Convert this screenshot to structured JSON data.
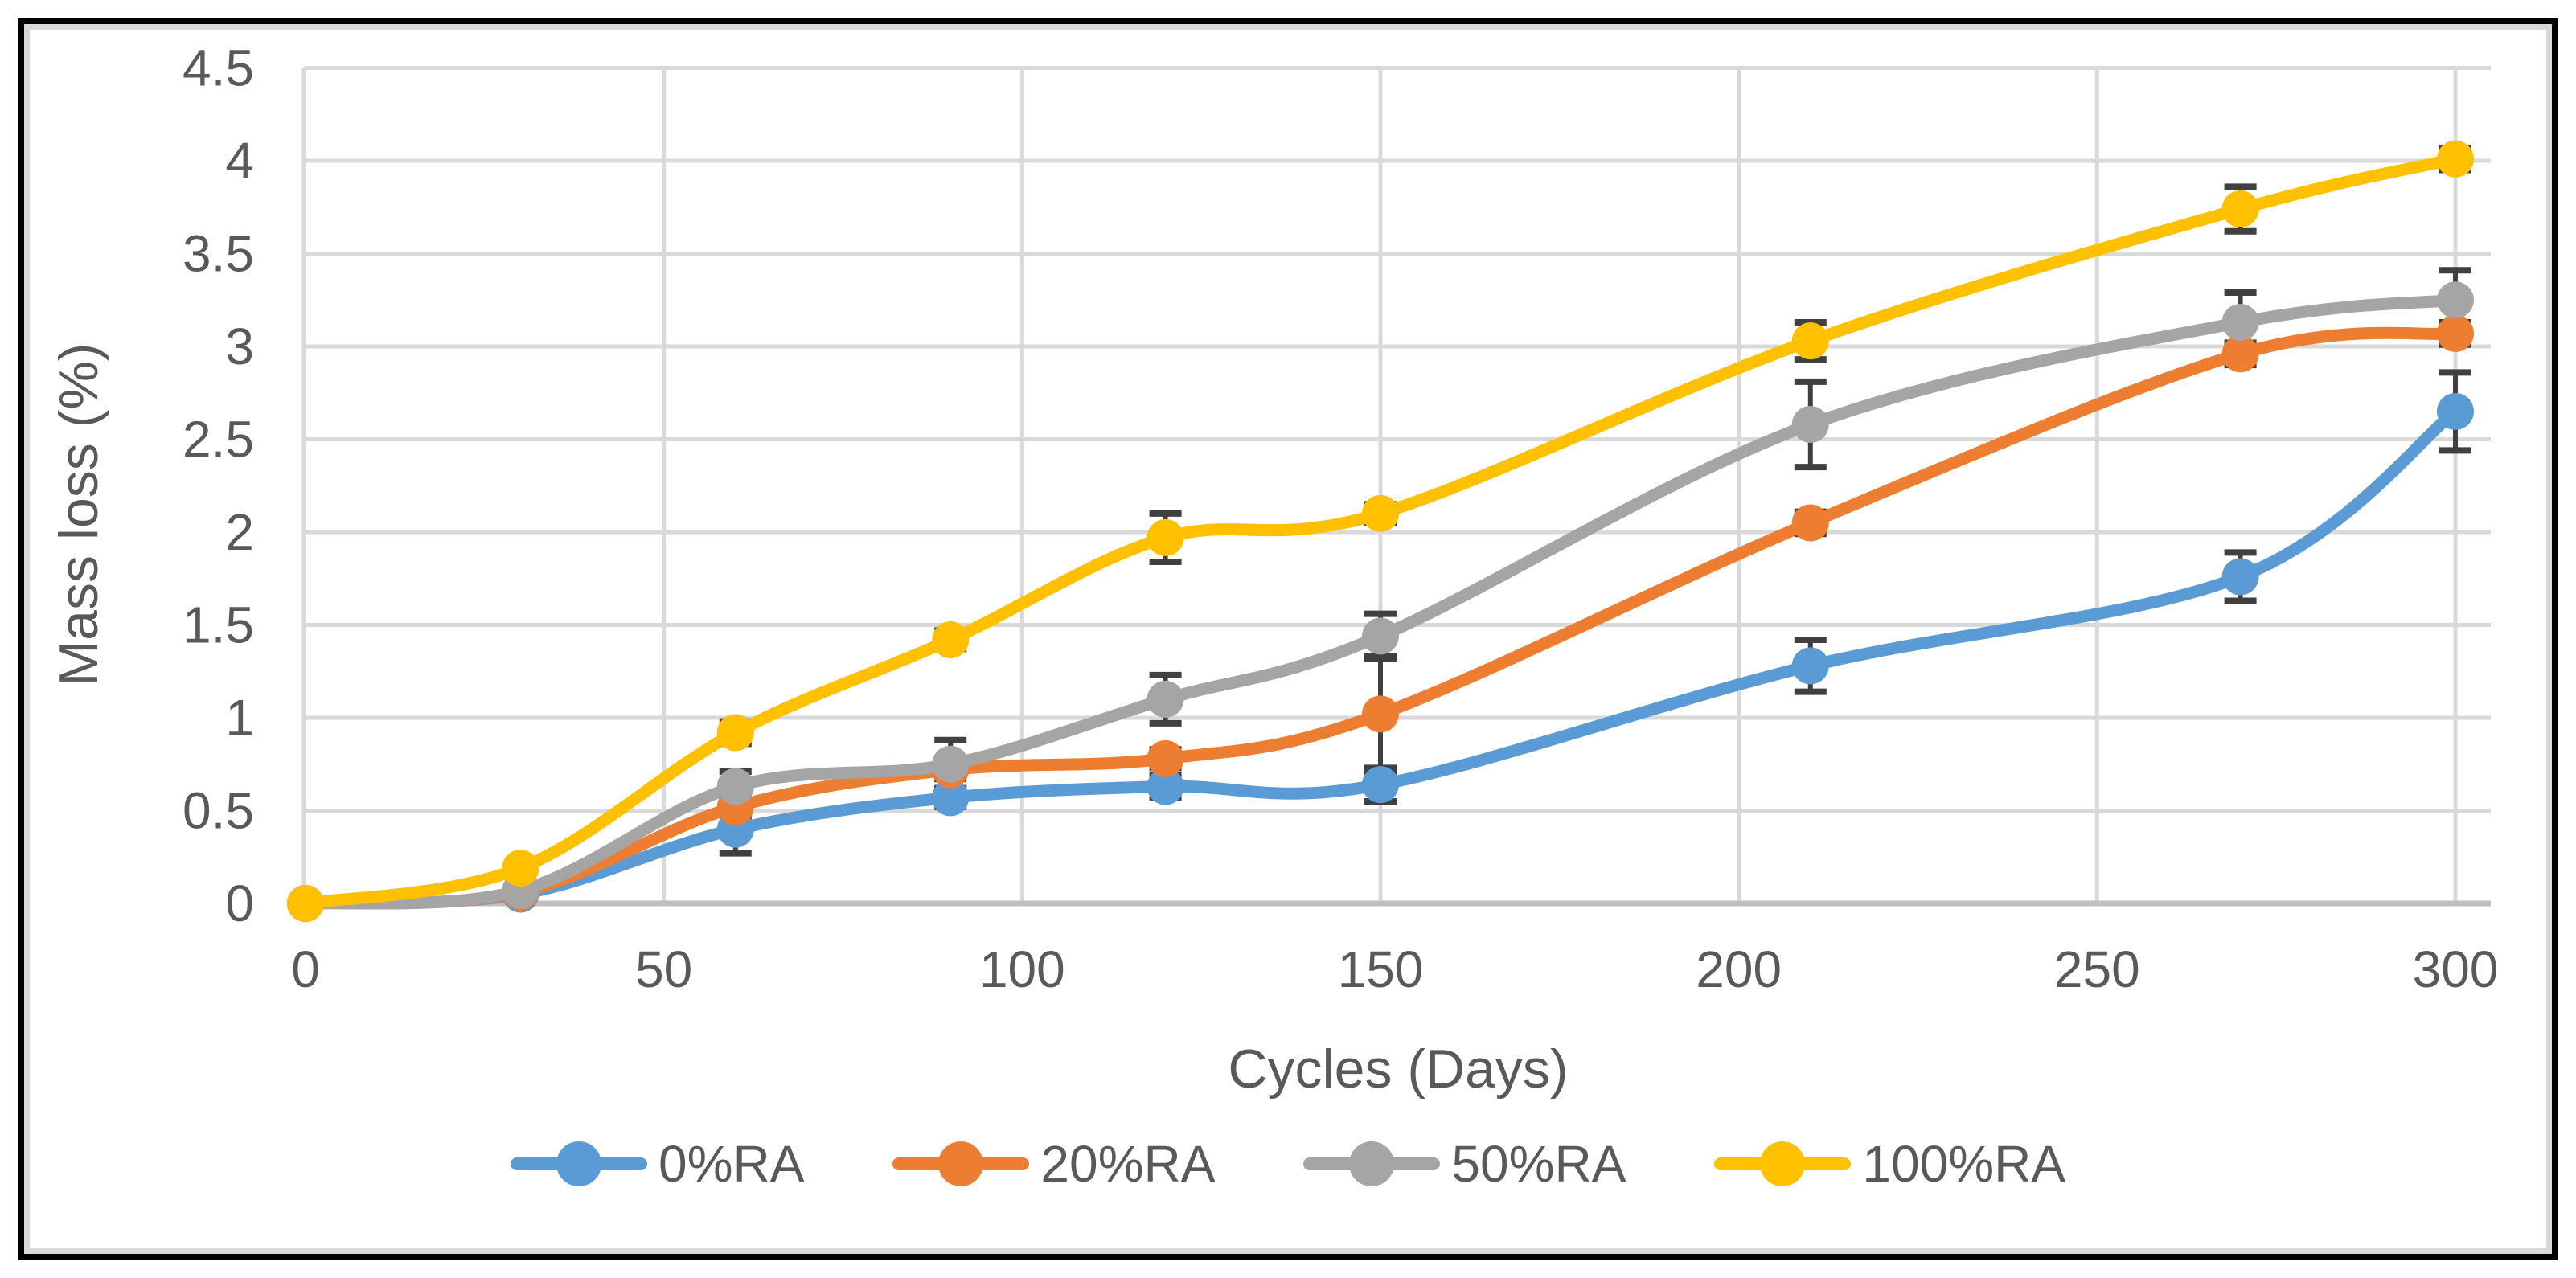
{
  "chart_data": {
    "type": "line",
    "title": "",
    "xlabel": "Cycles (Days)",
    "ylabel": "Mass loss (%)",
    "x": [
      0,
      30,
      60,
      90,
      120,
      150,
      210,
      270,
      300
    ],
    "x_ticks": [
      0,
      50,
      100,
      150,
      200,
      250,
      300
    ],
    "x_tick_labels": [
      "0",
      "50",
      "100",
      "150",
      "200",
      "250",
      "300"
    ],
    "y_ticks": [
      0,
      0.5,
      1,
      1.5,
      2,
      2.5,
      3,
      3.5,
      4,
      4.5
    ],
    "y_tick_labels": [
      "0",
      "0.5",
      "1",
      "1.5",
      "2",
      "2.5",
      "3",
      "3.5",
      "4",
      "4.5"
    ],
    "xlim": [
      0,
      305
    ],
    "ylim": [
      0,
      4.5
    ],
    "grid": true,
    "smooth_lines": true,
    "error_bars": true,
    "legend_position": "bottom",
    "series": [
      {
        "name": "0%RA",
        "color": "#5B9BD5",
        "values": [
          0,
          0.05,
          0.4,
          0.57,
          0.63,
          0.64,
          1.28,
          1.76,
          2.65
        ],
        "errors": [
          0,
          0,
          0.13,
          0.05,
          0.06,
          0.09,
          0.14,
          0.13,
          0.21
        ]
      },
      {
        "name": "20%RA",
        "color": "#ED7D31",
        "values": [
          0,
          0.06,
          0.52,
          0.72,
          0.78,
          1.02,
          2.05,
          2.96,
          3.07
        ],
        "errors": [
          0,
          0,
          0.06,
          0.05,
          0.05,
          0.31,
          0.06,
          0.06,
          0.06
        ]
      },
      {
        "name": "50%RA",
        "color": "#A5A5A5",
        "values": [
          0,
          0.07,
          0.63,
          0.75,
          1.1,
          1.44,
          2.58,
          3.13,
          3.25
        ],
        "errors": [
          0,
          0,
          0.08,
          0.13,
          0.13,
          0.12,
          0.23,
          0.16,
          0.16
        ]
      },
      {
        "name": "100%RA",
        "color": "#FFC000",
        "values": [
          0,
          0.19,
          0.92,
          1.42,
          1.97,
          2.1,
          3.03,
          3.74,
          4.01
        ],
        "errors": [
          0,
          0,
          0.06,
          0.05,
          0.13,
          0.05,
          0.1,
          0.12,
          0.06
        ]
      }
    ]
  },
  "styles": {
    "text_color": "#595959",
    "gridline_color": "#D9D9D9",
    "y_axis_line_color": "#D9D9D9",
    "x_axis_line_color": "#BFBFBF",
    "error_bar_color": "#404040",
    "outer_border_color": "#000000",
    "inner_border_color": "#D9D9D9",
    "background": "#FFFFFF"
  }
}
